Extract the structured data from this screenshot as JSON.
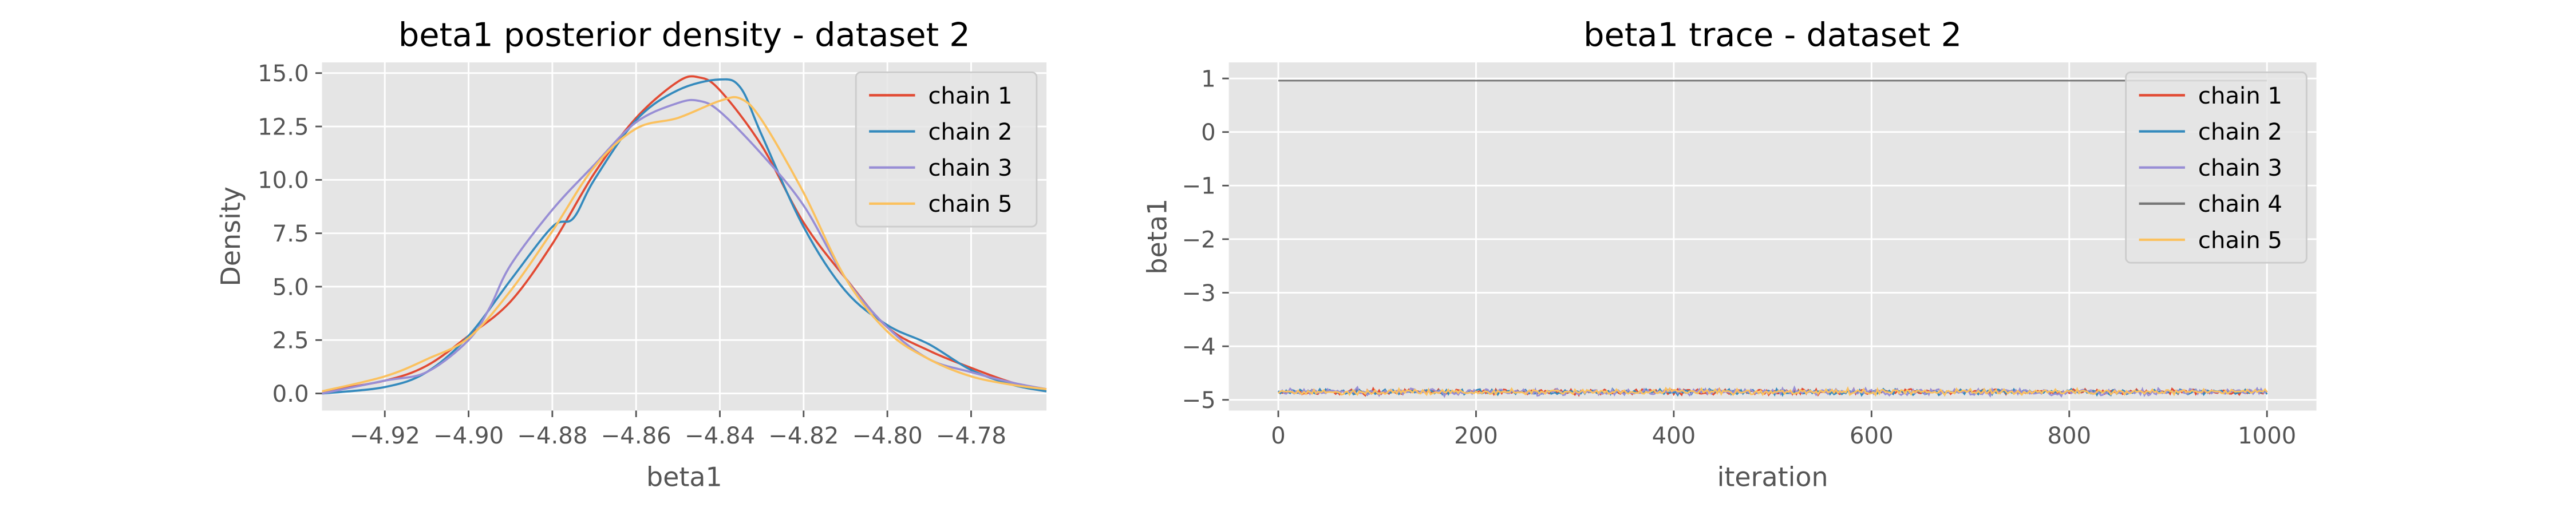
{
  "colors": {
    "chain 1": "#E24A33",
    "chain 2": "#348ABD",
    "chain 3": "#988ED5",
    "chain 4": "#777777",
    "chain 5": "#FBC15E",
    "axes_bg": "#E5E5E5",
    "grid": "#FFFFFF"
  },
  "chart_data": [
    {
      "type": "line",
      "title": "beta1 posterior density - dataset 2",
      "xlabel": "beta1",
      "ylabel": "Density",
      "xlim": [
        -4.935,
        -4.762
      ],
      "ylim": [
        -0.8,
        15.5
      ],
      "xticks": [
        -4.92,
        -4.9,
        -4.88,
        -4.86,
        -4.84,
        -4.82,
        -4.8,
        -4.78
      ],
      "xtick_labels": [
        "−4.92",
        "−4.90",
        "−4.88",
        "−4.86",
        "−4.84",
        "−4.82",
        "−4.80",
        "−4.78"
      ],
      "yticks": [
        0,
        2.5,
        5,
        7.5,
        10,
        12.5,
        15
      ],
      "ytick_labels": [
        "0.0",
        "2.5",
        "5.0",
        "7.5",
        "10.0",
        "12.5",
        "15.0"
      ],
      "grid": true,
      "legend_position": "top-right",
      "series": [
        {
          "name": "chain 1",
          "x": [
            -4.935,
            -4.92,
            -4.91,
            -4.9,
            -4.89,
            -4.88,
            -4.87,
            -4.86,
            -4.85,
            -4.845,
            -4.84,
            -4.83,
            -4.82,
            -4.81,
            -4.8,
            -4.79,
            -4.78,
            -4.77,
            -4.762
          ],
          "y": [
            0.1,
            0.6,
            1.3,
            2.7,
            4.3,
            7.0,
            10.3,
            12.9,
            14.6,
            14.8,
            14.2,
            11.6,
            8.0,
            5.4,
            3.1,
            2.0,
            1.2,
            0.5,
            0.2
          ]
        },
        {
          "name": "chain 2",
          "x": [
            -4.935,
            -4.92,
            -4.91,
            -4.9,
            -4.89,
            -4.88,
            -4.875,
            -4.87,
            -4.86,
            -4.85,
            -4.84,
            -4.835,
            -4.83,
            -4.82,
            -4.81,
            -4.8,
            -4.79,
            -4.78,
            -4.77,
            -4.762
          ],
          "y": [
            0.0,
            0.3,
            1.0,
            2.7,
            5.3,
            7.8,
            8.2,
            10.0,
            12.8,
            14.2,
            14.7,
            14.3,
            12.1,
            7.8,
            4.8,
            3.2,
            2.3,
            1.1,
            0.4,
            0.1
          ]
        },
        {
          "name": "chain 3",
          "x": [
            -4.935,
            -4.92,
            -4.91,
            -4.9,
            -4.895,
            -4.89,
            -4.88,
            -4.87,
            -4.86,
            -4.85,
            -4.845,
            -4.84,
            -4.83,
            -4.82,
            -4.81,
            -4.8,
            -4.79,
            -4.78,
            -4.77,
            -4.762
          ],
          "y": [
            0.0,
            0.6,
            1.0,
            2.5,
            4.0,
            6.0,
            8.6,
            10.7,
            12.7,
            13.6,
            13.7,
            13.2,
            11.2,
            8.8,
            5.4,
            3.1,
            1.6,
            1.0,
            0.5,
            0.2
          ]
        },
        {
          "name": "chain 5",
          "x": [
            -4.935,
            -4.92,
            -4.91,
            -4.9,
            -4.89,
            -4.88,
            -4.87,
            -4.86,
            -4.85,
            -4.84,
            -4.835,
            -4.83,
            -4.82,
            -4.81,
            -4.8,
            -4.79,
            -4.78,
            -4.77,
            -4.762
          ],
          "y": [
            0.1,
            0.8,
            1.6,
            2.6,
            4.8,
            7.6,
            10.6,
            12.4,
            12.9,
            13.7,
            13.8,
            12.8,
            9.4,
            5.4,
            2.9,
            1.6,
            0.8,
            0.4,
            0.2
          ]
        }
      ]
    },
    {
      "type": "line",
      "title": "beta1 trace - dataset 2",
      "xlabel": "iteration",
      "ylabel": "beta1",
      "xlim": [
        -50,
        1050
      ],
      "ylim": [
        -5.2,
        1.3
      ],
      "xticks": [
        0,
        200,
        400,
        600,
        800,
        1000
      ],
      "xtick_labels": [
        "0",
        "200",
        "400",
        "600",
        "800",
        "1000"
      ],
      "yticks": [
        -5,
        -4,
        -3,
        -2,
        -1,
        0,
        1
      ],
      "ytick_labels": [
        "−5",
        "−4",
        "−3",
        "−2",
        "−1",
        "0",
        "1"
      ],
      "grid": true,
      "legend_position": "top-right",
      "iterations": [
        0,
        1000
      ],
      "series": [
        {
          "name": "chain 1",
          "level": -4.85,
          "noise": 0.025
        },
        {
          "name": "chain 2",
          "level": -4.85,
          "noise": 0.025
        },
        {
          "name": "chain 3",
          "level": -4.85,
          "noise": 0.03
        },
        {
          "name": "chain 4",
          "level": 0.96,
          "noise": 0.0
        },
        {
          "name": "chain 5",
          "level": -4.85,
          "noise": 0.025
        }
      ]
    }
  ]
}
